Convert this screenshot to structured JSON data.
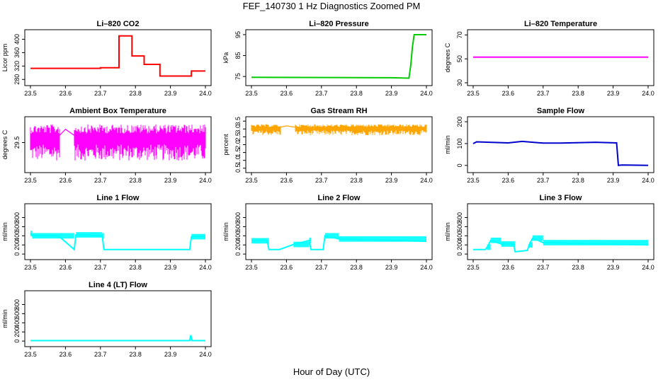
{
  "page": {
    "title": "FEF_140730  1 Hz Diagnostics Zoomed PM",
    "xlabel": "Hour of Day (UTC)"
  },
  "chart_data": [
    {
      "type": "line",
      "title": "Li–820 CO2",
      "xlabel": "",
      "ylabel": "Licor ppm",
      "color": "#ff0000",
      "xlim": [
        23.5,
        24.0
      ],
      "ylim": [
        270,
        420
      ],
      "xticks": [
        "23.5",
        "23.6",
        "23.7",
        "23.8",
        "23.9",
        "24.0"
      ],
      "yticks": [
        "280",
        "320",
        "360",
        "400"
      ],
      "series": [
        {
          "x": [
            23.5,
            23.7,
            23.7,
            23.753,
            23.753,
            23.79,
            23.79,
            23.825,
            23.825,
            23.87,
            23.87,
            23.96,
            23.96,
            24.0
          ],
          "y": [
            313,
            313,
            315,
            315,
            410,
            410,
            350,
            350,
            325,
            325,
            290,
            290,
            305,
            305
          ]
        }
      ]
    },
    {
      "type": "line",
      "title": "Li–820 Pressure",
      "xlabel": "",
      "ylabel": "kPa",
      "color": "#00cc00",
      "xlim": [
        23.5,
        24.0
      ],
      "ylim": [
        72,
        96
      ],
      "xticks": [
        "23.5",
        "23.6",
        "23.7",
        "23.8",
        "23.9",
        "24.0"
      ],
      "yticks": [
        "75",
        "85",
        "95"
      ],
      "series": [
        {
          "x": [
            23.5,
            23.75,
            23.9,
            23.95,
            23.955,
            23.96,
            23.965,
            24.0
          ],
          "y": [
            74.6,
            74.5,
            74.4,
            74.2,
            80,
            89,
            95,
            95
          ]
        }
      ]
    },
    {
      "type": "line",
      "title": "Li–820 Temperature",
      "xlabel": "",
      "ylabel": "degrees C",
      "color": "#ff00ff",
      "xlim": [
        23.5,
        24.0
      ],
      "ylim": [
        30,
        72
      ],
      "xticks": [
        "23.5",
        "23.6",
        "23.7",
        "23.8",
        "23.9",
        "24.0"
      ],
      "yticks": [
        "30",
        "50",
        "70"
      ],
      "series": [
        {
          "x": [
            23.5,
            24.0
          ],
          "y": [
            51.5,
            51.5
          ]
        }
      ]
    },
    {
      "type": "line",
      "title": "Ambient Box Temperature",
      "xlabel": "",
      "ylabel": "degrees C",
      "color": "#ff00ff",
      "xlim": [
        23.5,
        24.0
      ],
      "ylim": [
        29.05,
        29.88
      ],
      "xticks": [
        "23.5",
        "23.6",
        "23.7",
        "23.8",
        "23.9",
        "24.0"
      ],
      "yticks": [
        "29.5"
      ],
      "series": [
        {
          "x": [
            23.5,
            23.58,
            23.6,
            23.63,
            24.0
          ],
          "y": [
            29.55,
            29.6,
            29.72,
            29.6,
            29.55
          ],
          "noise": {
            "y_low": 29.2,
            "y_high": 29.8
          }
        }
      ]
    },
    {
      "type": "line",
      "title": "Gas Stream RH",
      "xlabel": "",
      "ylabel": "percent",
      "color": "#ffa500",
      "xlim": [
        23.5,
        24.0
      ],
      "ylim": [
        0.4,
        3.6
      ],
      "xticks": [
        "23.5",
        "23.6",
        "23.7",
        "23.8",
        "23.9",
        "24.0"
      ],
      "yticks": [
        "0.5",
        "1.0",
        "1.5",
        "2.0",
        "2.5",
        "3.0",
        "3.5"
      ],
      "series": [
        {
          "x": [
            23.5,
            23.58,
            23.6,
            23.63,
            24.0
          ],
          "y": [
            2.9,
            3.1,
            3.2,
            3.1,
            3.0
          ],
          "noise": {
            "y_low": 2.6,
            "y_high": 3.3
          }
        }
      ]
    },
    {
      "type": "line",
      "title": "Sample Flow",
      "xlabel": "",
      "ylabel": "ml/min",
      "color": "#0000cc",
      "xlim": [
        23.5,
        24.0
      ],
      "ylim": [
        -20,
        210
      ],
      "xticks": [
        "23.5",
        "23.6",
        "23.7",
        "23.8",
        "23.9",
        "24.0"
      ],
      "yticks": [
        "0",
        "100",
        "200"
      ],
      "series": [
        {
          "x": [
            23.5,
            23.51,
            23.6,
            23.64,
            23.7,
            23.75,
            23.85,
            23.91,
            23.915,
            23.925,
            24.0
          ],
          "y": [
            100,
            108,
            103,
            110,
            102,
            102,
            106,
            103,
            0,
            2,
            0
          ]
        }
      ]
    },
    {
      "type": "line",
      "title": "Line 1 Flow",
      "xlabel": "",
      "ylabel": "ml/min",
      "color": "#00ffff",
      "xlim": [
        23.5,
        24.0
      ],
      "ylim": [
        -60,
        1040
      ],
      "xticks": [
        "23.5",
        "23.6",
        "23.7",
        "23.8",
        "23.9",
        "24.0"
      ],
      "yticks": [
        "0",
        "200",
        "400",
        "600",
        "800"
      ],
      "series": [
        {
          "x": [
            23.5,
            23.505,
            23.58,
            23.625,
            23.63,
            23.705,
            23.71,
            23.955,
            23.96,
            24.0
          ],
          "y": [
            450,
            400,
            400,
            100,
            420,
            400,
            100,
            100,
            380,
            380
          ]
        }
      ]
    },
    {
      "type": "line",
      "title": "Line 2 Flow",
      "xlabel": "",
      "ylabel": "ml/min",
      "color": "#00ffff",
      "xlim": [
        23.5,
        24.0
      ],
      "ylim": [
        -60,
        1040
      ],
      "xticks": [
        "23.5",
        "23.6",
        "23.7",
        "23.8",
        "23.9",
        "24.0"
      ],
      "yticks": [
        "0",
        "200",
        "400",
        "600",
        "800"
      ],
      "series": [
        {
          "x": [
            23.5,
            23.545,
            23.55,
            23.58,
            23.62,
            23.665,
            23.67,
            23.705,
            23.71,
            23.75,
            24.0
          ],
          "y": [
            290,
            290,
            100,
            100,
            210,
            300,
            100,
            100,
            400,
            330,
            280
          ]
        }
      ]
    },
    {
      "type": "line",
      "title": "Line 3 Flow",
      "xlabel": "",
      "ylabel": "ml/min",
      "color": "#00ffff",
      "xlim": [
        23.5,
        24.0
      ],
      "ylim": [
        -60,
        1040
      ],
      "xticks": [
        "23.5",
        "23.6",
        "23.7",
        "23.8",
        "23.9",
        "24.0"
      ],
      "yticks": [
        "0",
        "200",
        "400",
        "600",
        "800"
      ],
      "series": [
        {
          "x": [
            23.5,
            23.535,
            23.54,
            23.55,
            23.58,
            23.615,
            23.62,
            23.655,
            23.66,
            23.67,
            23.7,
            24.0
          ],
          "y": [
            100,
            100,
            150,
            300,
            220,
            220,
            50,
            80,
            200,
            350,
            250,
            200
          ]
        }
      ]
    },
    {
      "type": "line",
      "title": "Line 4 (LT) Flow",
      "xlabel": "",
      "ylabel": "ml/min",
      "color": "#00ffff",
      "xlim": [
        23.5,
        24.0
      ],
      "ylim": [
        -60,
        1040
      ],
      "xticks": [
        "23.5",
        "23.6",
        "23.7",
        "23.8",
        "23.9",
        "24.0"
      ],
      "yticks": [
        "0",
        "200",
        "400",
        "600",
        "800"
      ],
      "series": [
        {
          "x": [
            23.5,
            23.955,
            23.958,
            23.962,
            24.0
          ],
          "y": [
            10,
            10,
            130,
            10,
            10
          ]
        }
      ]
    }
  ]
}
